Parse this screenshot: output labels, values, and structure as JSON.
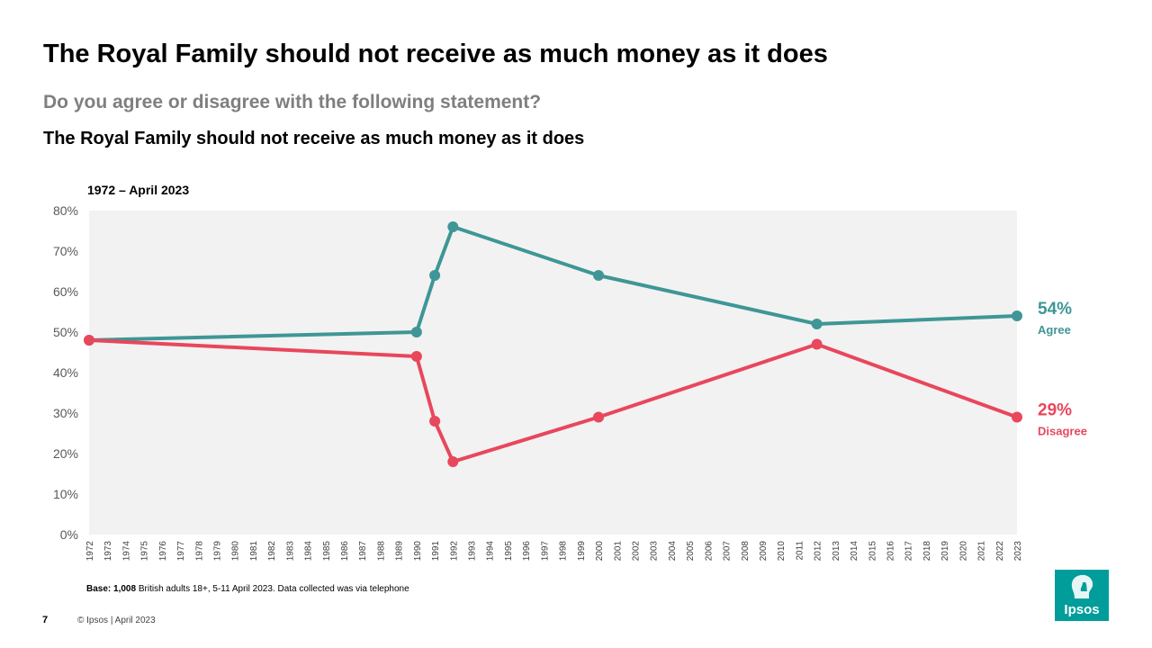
{
  "slide": {
    "title": "The Royal Family should not receive as much money as it does",
    "subtitle": "Do you agree or disagree with the following statement?",
    "statement": "The Royal Family should not receive as much money as it does",
    "period": "1972 – April 2023",
    "base_label": "Base:",
    "base_number": "1,008",
    "base_text": " British adults 18+,  5-11 April 2023. Data collected was via telephone",
    "page_number": "7",
    "copyright": "© Ipsos | April 2023",
    "logo_text": "Ipsos"
  },
  "colors": {
    "agree": "#3f9696",
    "disagree": "#e8475c",
    "plot_bg": "#f2f2f2"
  },
  "chart_data": {
    "type": "line",
    "title": "The Royal Family should not receive as much money as it does",
    "xlabel": "",
    "ylabel": "",
    "x_range": [
      1972,
      2023
    ],
    "ylim": [
      0,
      80
    ],
    "y_ticks": [
      "0%",
      "10%",
      "20%",
      "30%",
      "40%",
      "50%",
      "60%",
      "70%",
      "80%"
    ],
    "grid": false,
    "series": [
      {
        "name": "Agree",
        "end_label": "54%",
        "color": "#3f9696",
        "points": [
          [
            1972,
            48
          ],
          [
            1990,
            50
          ],
          [
            1991,
            64
          ],
          [
            1992,
            76
          ],
          [
            2000,
            64
          ],
          [
            2012,
            52
          ],
          [
            2023,
            54
          ]
        ]
      },
      {
        "name": "Disagree",
        "end_label": "29%",
        "color": "#e8475c",
        "points": [
          [
            1972,
            48
          ],
          [
            1990,
            44
          ],
          [
            1991,
            28
          ],
          [
            1992,
            18
          ],
          [
            2000,
            29
          ],
          [
            2012,
            47
          ],
          [
            2023,
            29
          ]
        ]
      }
    ]
  }
}
